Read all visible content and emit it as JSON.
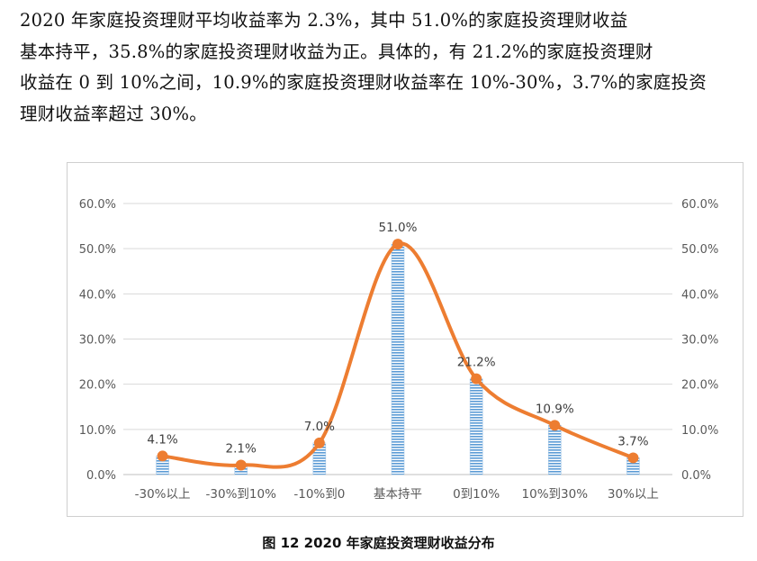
{
  "text": {
    "lines": [
      "    2020 年家庭投资理财平均收益率为 2.3%，其中 51.0%的家庭投资理财收益",
      "基本持平，35.8%的家庭投资理财收益为正。具体的，有 21.2%的家庭投资理财",
      "收益在 0 到 10%之间，10.9%的家庭投资理财收益率在 10%-30%，3.7%的家庭投资",
      "理财收益率超过 30%。"
    ]
  },
  "caption": "图 12   2020 年家庭投资理财收益分布",
  "chart_data": {
    "type": "bar",
    "combo": "bar + smoothed line",
    "categories": [
      "-30%以上",
      "-30%到10%",
      "-10%到0",
      "基本持平",
      "0到10%",
      "10%到30%",
      "30%以上"
    ],
    "values": [
      4.1,
      2.1,
      7.0,
      51.0,
      21.2,
      10.9,
      3.7
    ],
    "value_labels": [
      "4.1%",
      "2.1%",
      "7.0%",
      "51.0%",
      "21.2%",
      "10.9%",
      "3.7%"
    ],
    "ylim": [
      0,
      60
    ],
    "yticks": [
      "0.0%",
      "10.0%",
      "20.0%",
      "30.0%",
      "40.0%",
      "50.0%",
      "60.0%"
    ],
    "secondary_yticks": [
      "0.0%",
      "10.0%",
      "20.0%",
      "30.0%",
      "40.0%",
      "50.0%",
      "60.0%"
    ],
    "grid": true,
    "bar_color": "#5b9bd5",
    "line_color": "#ed7d31"
  }
}
